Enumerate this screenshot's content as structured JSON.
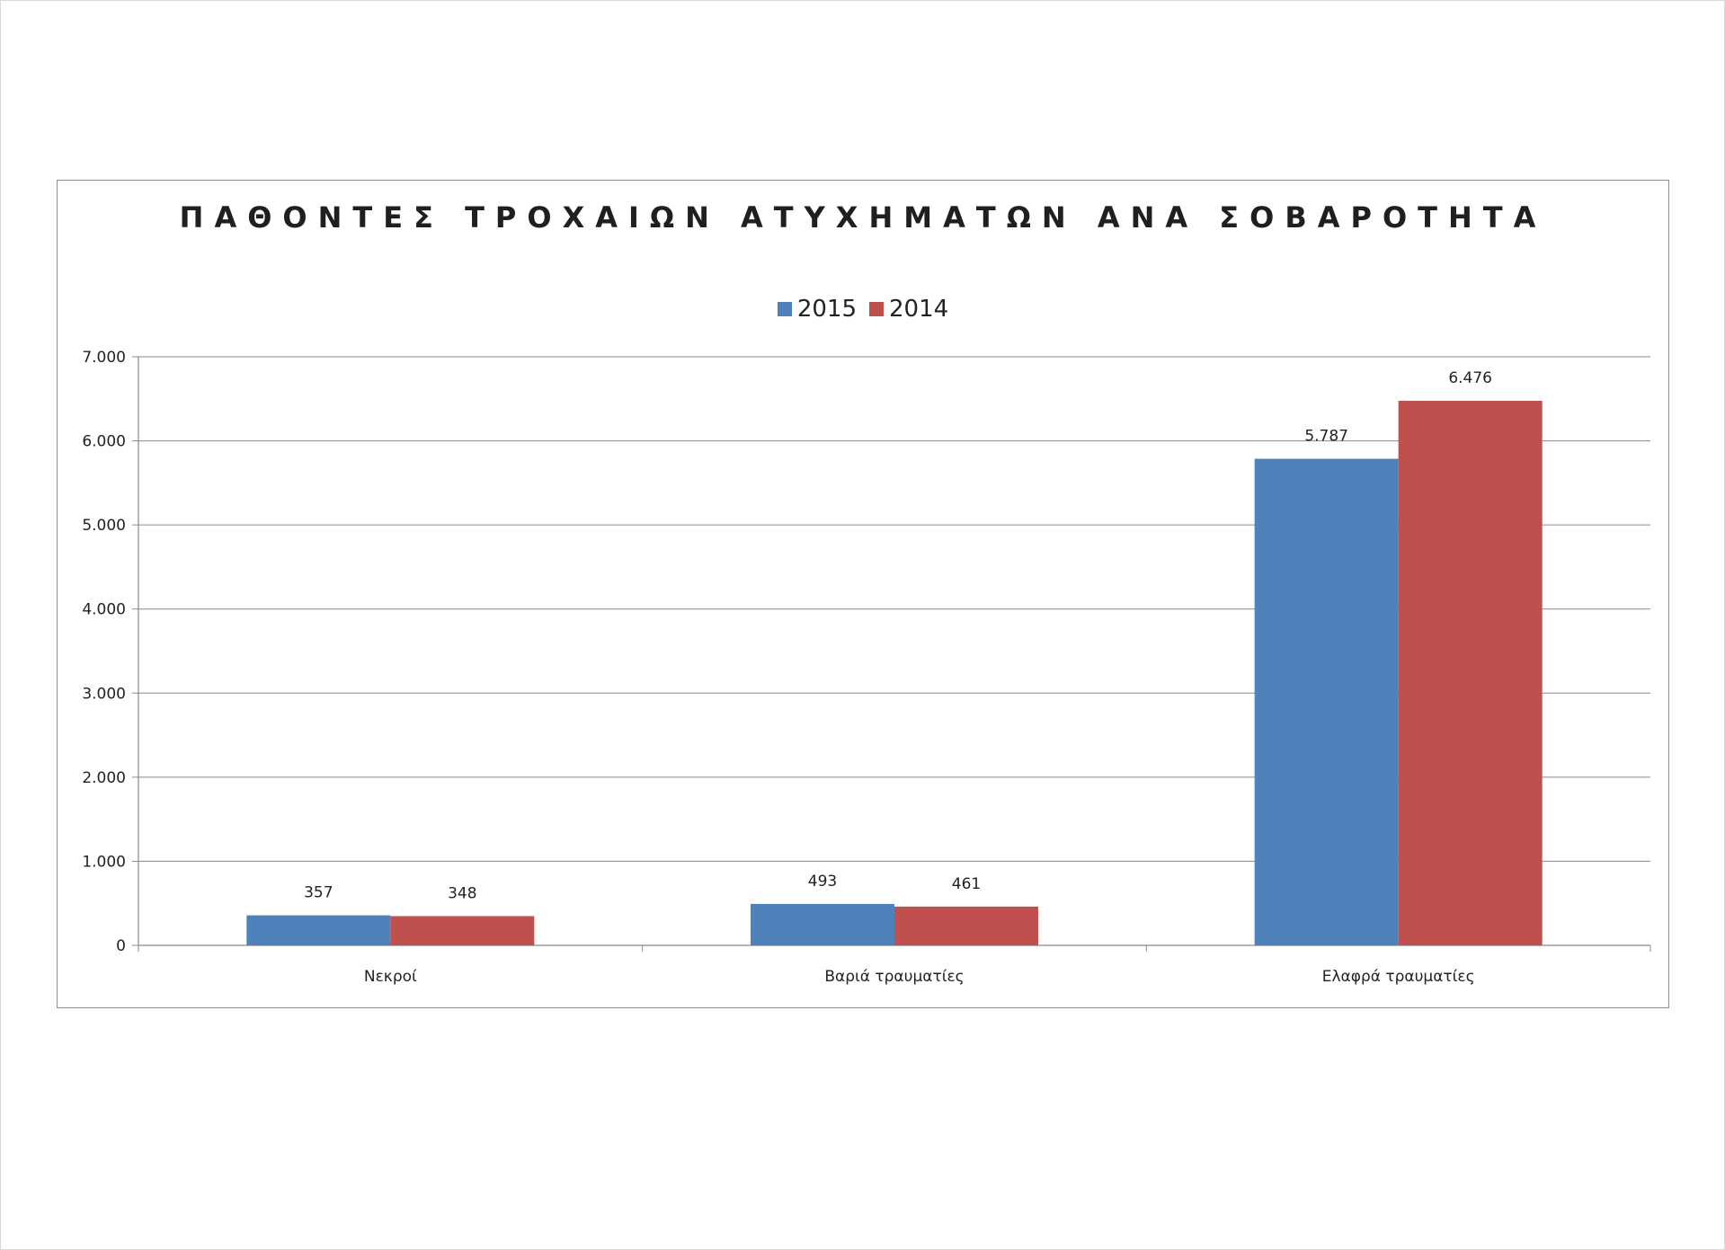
{
  "chart_data": {
    "type": "bar",
    "title": "ΠΑΘΟΝΤΕΣ ΤΡΟΧΑΙΩΝ ΑΤΥΧΗΜΑΤΩΝ ΑΝΑ ΣΟΒΑΡΟΤΗΤΑ",
    "categories": [
      "Νεκροί",
      "Βαριά τραυματίες",
      "Ελαφρά τραυματίες"
    ],
    "series": [
      {
        "name": "2015",
        "values": [
          357,
          493,
          5787
        ],
        "labels": [
          "357",
          "493",
          "5.787"
        ],
        "color": "#4f81bd"
      },
      {
        "name": "2014",
        "values": [
          348,
          461,
          6476
        ],
        "labels": [
          "348",
          "461",
          "6.476"
        ],
        "color": "#c0504d"
      }
    ],
    "ylim": [
      0,
      7000
    ],
    "yticks": [
      0,
      1000,
      2000,
      3000,
      4000,
      5000,
      6000,
      7000
    ],
    "ytick_labels": [
      "0",
      "1.000",
      "2.000",
      "3.000",
      "4.000",
      "5.000",
      "6.000",
      "7.000"
    ],
    "xlabel": "",
    "ylabel": "",
    "grid": true,
    "legend_position": "top"
  }
}
